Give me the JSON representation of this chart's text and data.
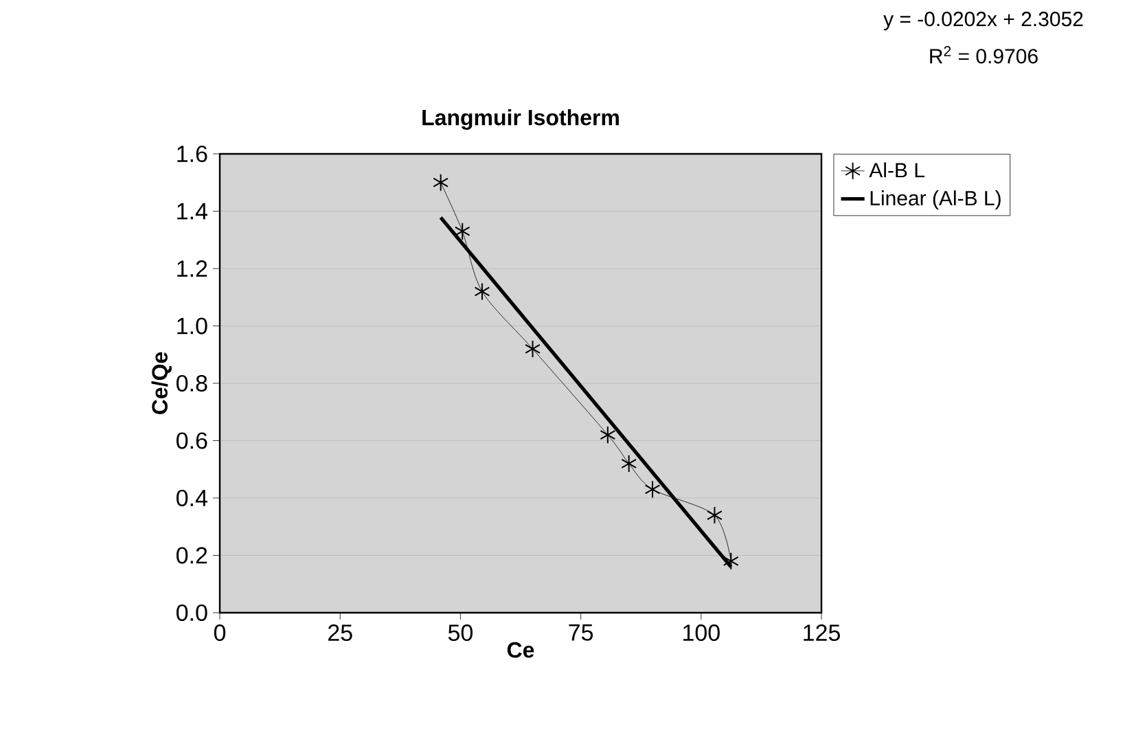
{
  "chart_data": {
    "type": "line",
    "title": "Langmuir Isotherm",
    "xlabel": "Ce",
    "ylabel": "Ce/Qe",
    "series": [
      {
        "name": "Al-B L",
        "color": "#000000",
        "marker": "cross",
        "line_style": "solid",
        "x": [
          45.9,
          50.4,
          54.5,
          65.0,
          80.6,
          85.0,
          89.9,
          102.8,
          106.2
        ],
        "values": [
          1.5,
          1.33,
          1.12,
          0.92,
          0.62,
          0.52,
          0.43,
          0.34,
          0.18
        ]
      },
      {
        "name": "Linear (Al-B L)",
        "color": "#000000",
        "marker": "none",
        "line_style": "solid",
        "x": [
          45.9,
          106.2
        ],
        "values": [
          1.378,
          0.16
        ]
      }
    ],
    "xlim": [
      0,
      125
    ],
    "xticks": [
      0,
      25,
      50,
      75,
      100,
      125
    ],
    "ylim": [
      0,
      1.6
    ],
    "yticks": [
      {
        "value": 0,
        "label": "0.0"
      },
      {
        "value": 0.2,
        "label": "0.2"
      },
      {
        "value": 0.4,
        "label": "0.4"
      },
      {
        "value": 0.6,
        "label": "0.6"
      },
      {
        "value": 0.8,
        "label": "0.8"
      },
      {
        "value": 1.0,
        "label": "1.0"
      },
      {
        "value": 1.2,
        "label": "1.2"
      },
      {
        "value": 1.4,
        "label": "1.4"
      },
      {
        "value": 1.6,
        "label": "1.6"
      }
    ],
    "grid": "y",
    "legend": "right",
    "annotations": [
      "y = -0.0202x + 2.3052",
      "R$^{2}$ = 0.9706"
    ]
  }
}
